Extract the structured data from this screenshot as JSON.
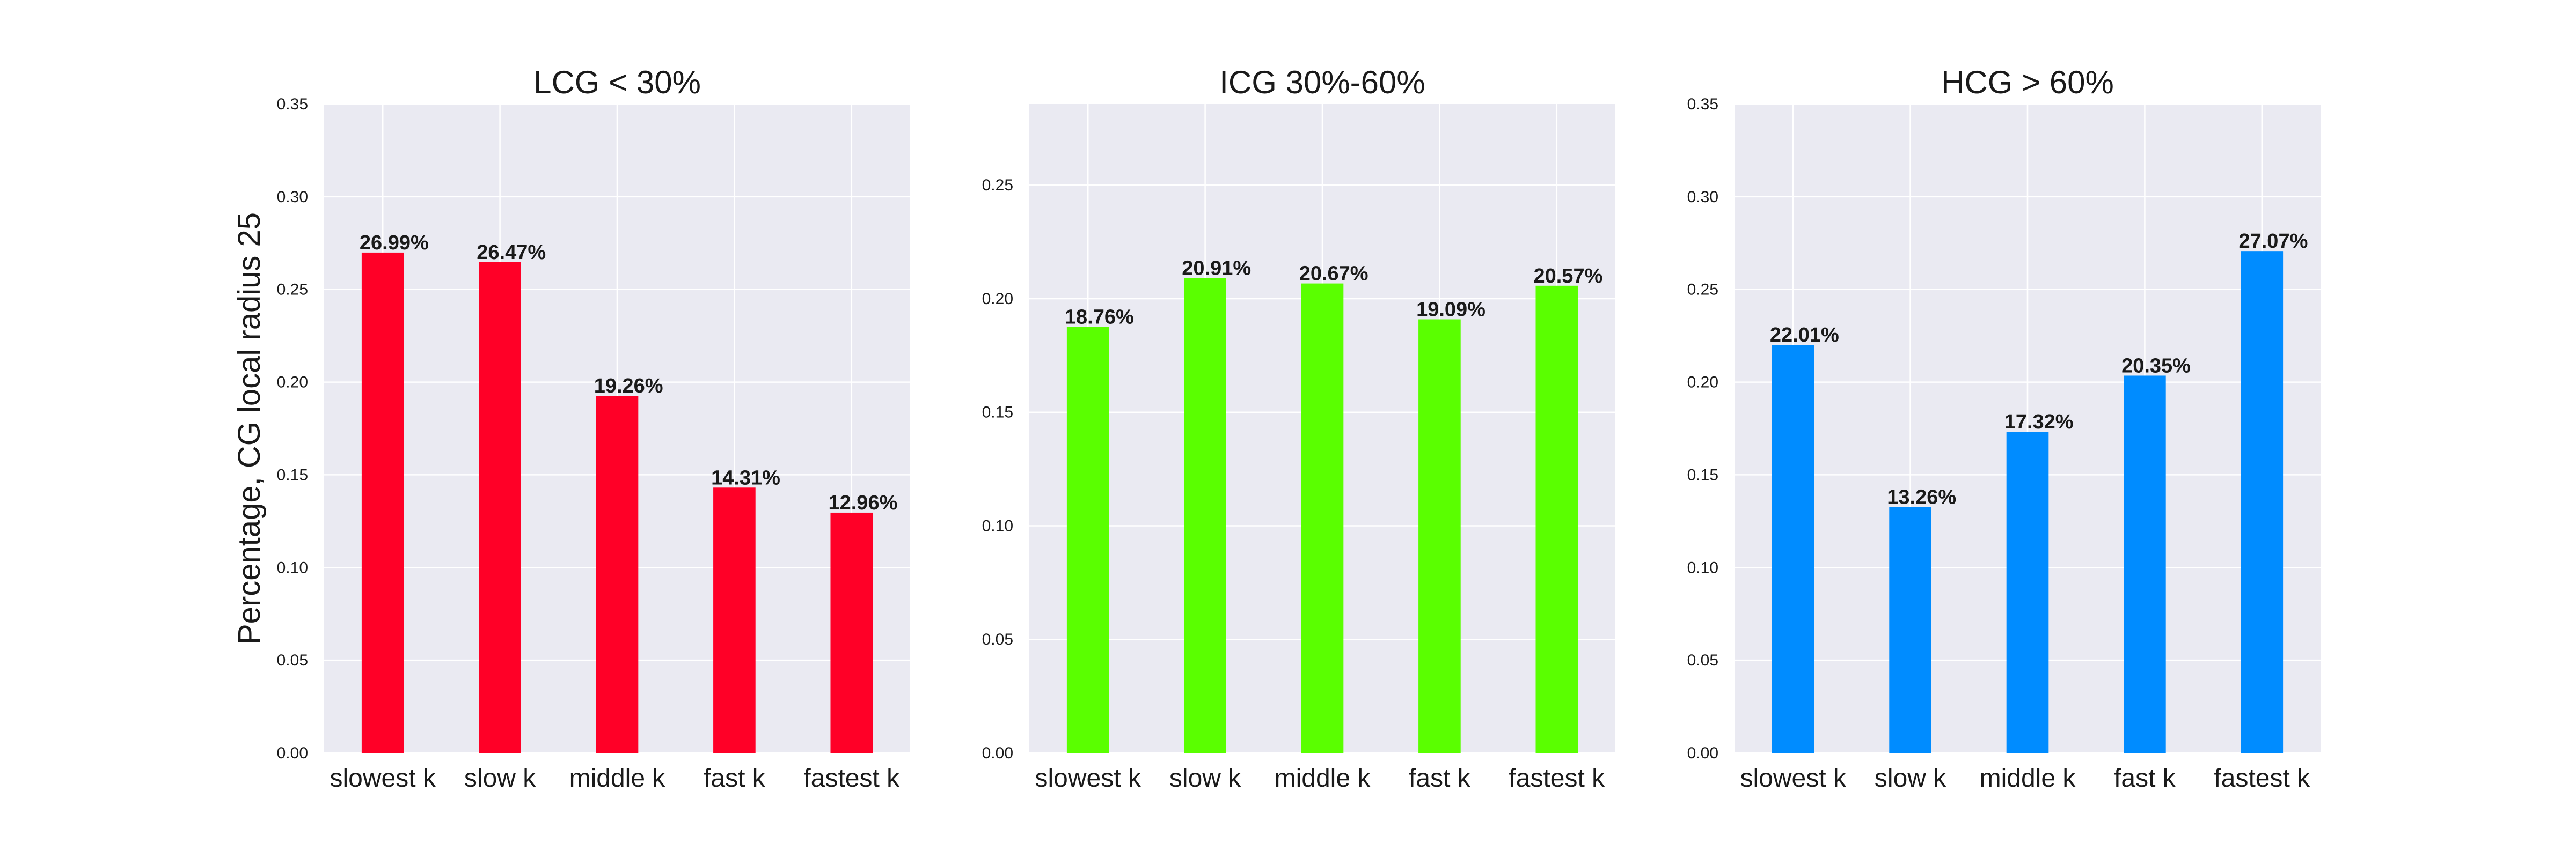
{
  "chart_data": [
    {
      "type": "bar",
      "title": "LCG < 30%",
      "ylabel": "Percentage, CG local radius 25",
      "xlabel": "",
      "categories": [
        "slowest k",
        "slow k",
        "middle k",
        "fast k",
        "fastest k"
      ],
      "values": [
        0.2699,
        0.2647,
        0.1926,
        0.1431,
        0.1296
      ],
      "data_labels": [
        "26.99%",
        "26.47%",
        "19.26%",
        "14.31%",
        "12.96%"
      ],
      "ylim": [
        0,
        0.35
      ],
      "yticks": [
        0.0,
        0.05,
        0.1,
        0.15,
        0.2,
        0.25,
        0.3,
        0.35
      ],
      "ytick_labels": [
        "0.00",
        "0.05",
        "0.10",
        "0.15",
        "0.20",
        "0.25",
        "0.30",
        "0.35"
      ],
      "color": "#ff0027",
      "grid": true
    },
    {
      "type": "bar",
      "title": "ICG 30%-60%",
      "ylabel": "",
      "xlabel": "",
      "categories": [
        "slowest k",
        "slow k",
        "middle k",
        "fast k",
        "fastest k"
      ],
      "values": [
        0.1876,
        0.2091,
        0.2067,
        0.1909,
        0.2057
      ],
      "data_labels": [
        "18.76%",
        "20.91%",
        "20.67%",
        "19.09%",
        "20.57%"
      ],
      "ylim": [
        0,
        0.2857
      ],
      "yticks": [
        0.0,
        0.05,
        0.1,
        0.15,
        0.2,
        0.25
      ],
      "ytick_labels": [
        "0.00",
        "0.05",
        "0.10",
        "0.15",
        "0.20",
        "0.25"
      ],
      "color": "#5aff00",
      "grid": true
    },
    {
      "type": "bar",
      "title": "HCG > 60%",
      "ylabel": "",
      "xlabel": "",
      "categories": [
        "slowest k",
        "slow k",
        "middle k",
        "fast k",
        "fastest k"
      ],
      "values": [
        0.2201,
        0.1326,
        0.1732,
        0.2035,
        0.2707
      ],
      "data_labels": [
        "22.01%",
        "13.26%",
        "17.32%",
        "20.35%",
        "27.07%"
      ],
      "ylim": [
        0,
        0.35
      ],
      "yticks": [
        0.0,
        0.05,
        0.1,
        0.15,
        0.2,
        0.25,
        0.3,
        0.35
      ],
      "ytick_labels": [
        "0.00",
        "0.05",
        "0.10",
        "0.15",
        "0.20",
        "0.25",
        "0.30",
        "0.35"
      ],
      "color": "#008cff",
      "grid": true
    }
  ],
  "colors": {
    "plot_background": "#eaeaf2",
    "grid": "#ffffff",
    "text": "#1a1a1a"
  }
}
